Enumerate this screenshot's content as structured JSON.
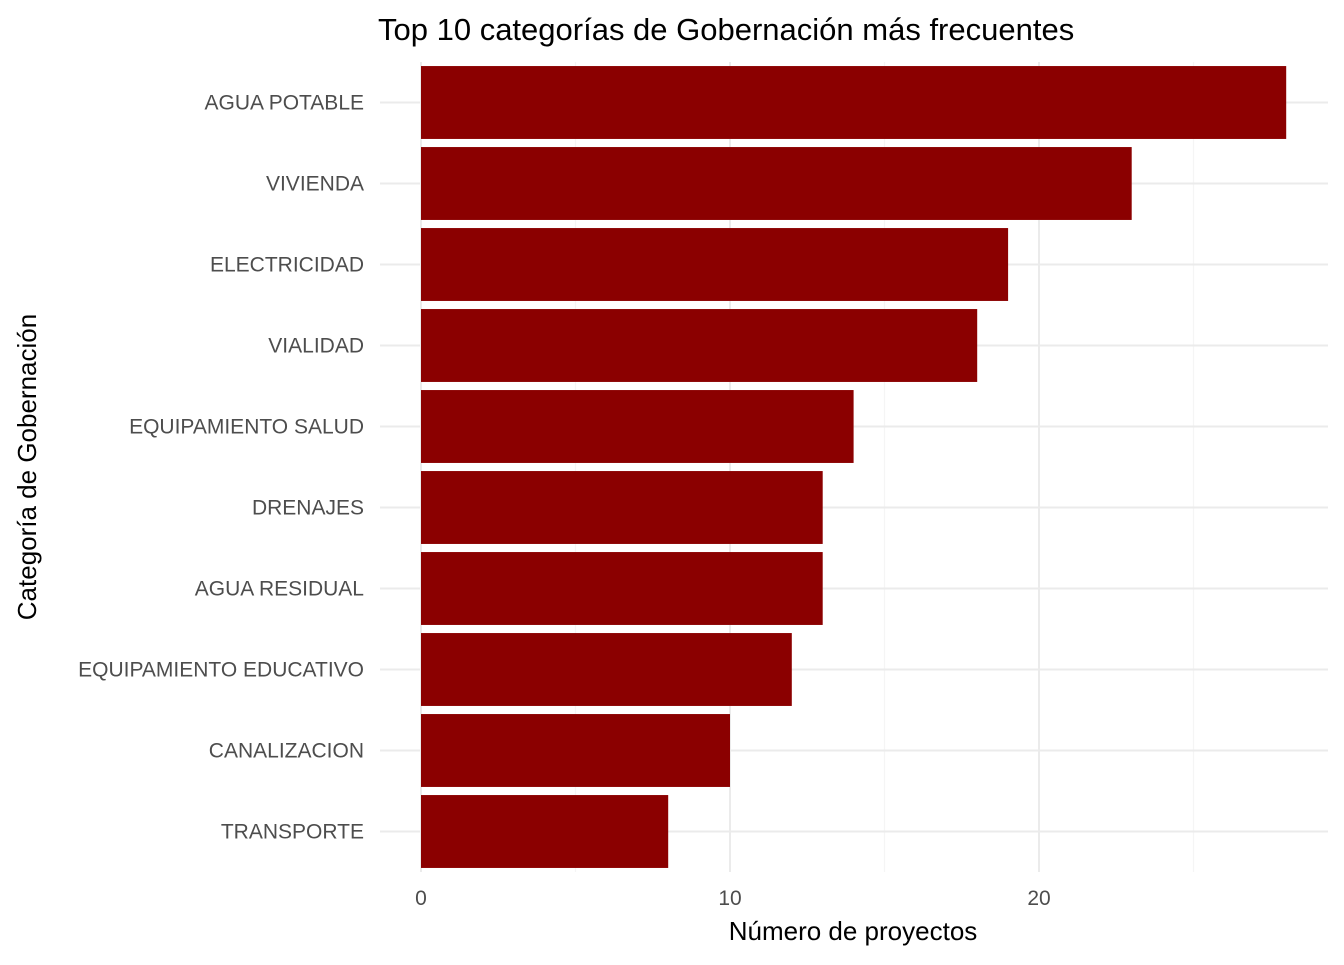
{
  "chart_data": {
    "type": "bar",
    "orientation": "horizontal",
    "title": "Top 10 categorías de Gobernación más frecuentes",
    "xlabel": "Número de proyectos",
    "ylabel": "Categoría de Gobernación",
    "categories": [
      "AGUA POTABLE",
      "VIVIENDA",
      "ELECTRICIDAD",
      "VIALIDAD",
      "EQUIPAMIENTO SALUD",
      "DRENAJES",
      "AGUA RESIDUAL",
      "EQUIPAMIENTO EDUCATIVO",
      "CANALIZACION",
      "TRANSPORTE"
    ],
    "values": [
      28,
      23,
      19,
      18,
      14,
      13,
      13,
      12,
      10,
      8
    ],
    "xlim": [
      0,
      29.4
    ],
    "x_ticks": [
      0,
      10,
      20
    ],
    "x_minor_ticks": [
      5,
      15,
      25
    ],
    "bar_color": "#8b0000",
    "grid": true,
    "legend": "none"
  }
}
